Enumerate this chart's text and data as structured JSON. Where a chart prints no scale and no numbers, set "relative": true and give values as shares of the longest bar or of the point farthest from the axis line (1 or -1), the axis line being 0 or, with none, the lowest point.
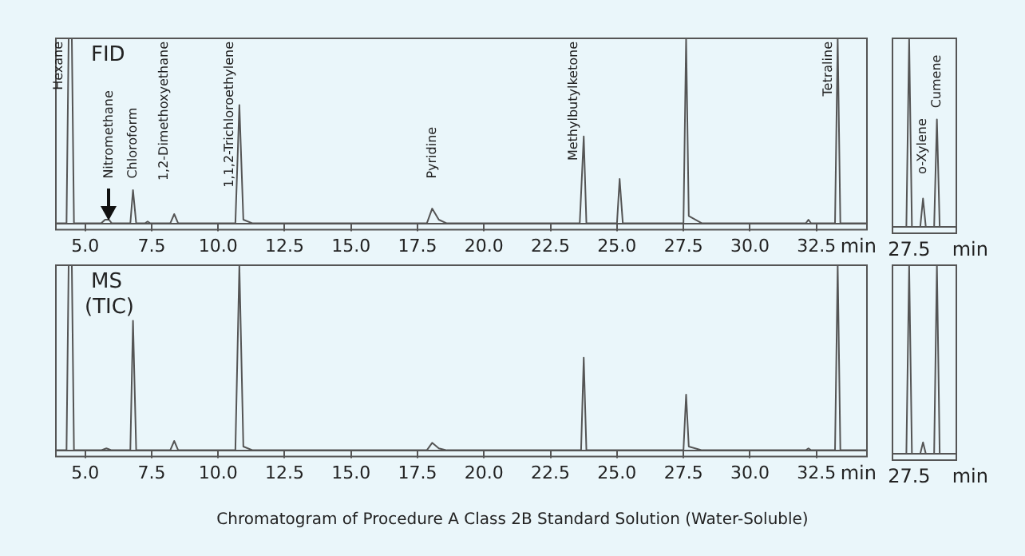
{
  "chart_data": [
    {
      "type": "line",
      "title": "FID",
      "xlabel": "min",
      "relative": true,
      "grid": false,
      "legend": false,
      "marker": "none",
      "line_style": "solid",
      "xlim": [
        3.9,
        34.4
      ],
      "xticks": [
        {
          "value": 5,
          "label": "5.0"
        },
        7.5,
        {
          "value": 10,
          "label": "10.0"
        },
        12.5,
        {
          "value": 15,
          "label": "15.0"
        },
        17.5,
        {
          "value": 20,
          "label": "20.0"
        },
        22.5,
        {
          "value": 25,
          "label": "25.0"
        },
        27.5,
        {
          "value": 30,
          "label": "30.0"
        },
        32.5
      ],
      "series": [
        {
          "color": "#555555",
          "x": [
            3.9,
            4.3,
            4.38,
            4.5,
            4.58,
            5.6,
            5.75,
            5.9,
            6.0,
            6.7,
            6.8,
            6.92,
            7.25,
            7.35,
            7.45,
            8.2,
            8.35,
            8.5,
            10.65,
            10.8,
            10.95,
            11.3,
            17.85,
            18.05,
            18.3,
            18.6,
            23.6,
            23.75,
            23.85,
            25.0,
            25.1,
            25.22,
            27.5,
            27.6,
            27.7,
            28.2,
            32.1,
            32.2,
            32.3,
            33.2,
            33.3,
            33.4,
            34.4
          ],
          "values": [
            0,
            0,
            1,
            1,
            0,
            0,
            0.02,
            0.02,
            0,
            0,
            0.18,
            0,
            0,
            0.01,
            0,
            0,
            0.05,
            0,
            0,
            0.64,
            0.02,
            0,
            0,
            0.08,
            0.02,
            0,
            0,
            0.47,
            0,
            0,
            0.24,
            0,
            0,
            1,
            0.04,
            0,
            0,
            0.02,
            0,
            0,
            1,
            0,
            0
          ]
        }
      ],
      "annotations": [
        {
          "text": "Hexane",
          "x": 4.38,
          "y": 1
        },
        {
          "text": "Nitromethane",
          "x": 5.9,
          "y": 0.02
        },
        {
          "text": "Chloroform",
          "x": 6.8,
          "y": 0.18
        },
        {
          "text": "1,2-Dimethoxyethane",
          "x": 8.35,
          "y": 0.05
        },
        {
          "text": "1,1,2-Trichloroethylene",
          "x": 10.8,
          "y": 0.64
        },
        {
          "text": "Pyridine",
          "x": 18.05,
          "y": 0.08
        },
        {
          "text": "Methylbutylketone",
          "x": 23.75,
          "y": 0.47
        },
        {
          "text": "Tetraline",
          "x": 33.3,
          "y": 1
        }
      ]
    },
    {
      "type": "line",
      "xlabel": "min",
      "relative": true,
      "grid": false,
      "legend": false,
      "marker": "none",
      "line_style": "solid",
      "categories": [
        null,
        null,
        null,
        null,
        null,
        null,
        null,
        null,
        null,
        null,
        null,
        null,
        null,
        null,
        null,
        null,
        null,
        null,
        null,
        null,
        null,
        null,
        null,
        null
      ],
      "series": [
        {
          "color": "#555555",
          "values": [
            0,
            0,
            0,
            0,
            0,
            0,
            1,
            0,
            0,
            0,
            0,
            0.15,
            0,
            0,
            0,
            0,
            0.57,
            0,
            0,
            0,
            0,
            0,
            0,
            0
          ]
        }
      ],
      "annotations": [
        "o-Xylene",
        "Cumene",
        "27.5"
      ]
    },
    {
      "type": "line",
      "title": "MS (TIC)",
      "xlabel": "min",
      "relative": true,
      "grid": false,
      "legend": false,
      "marker": "none",
      "line_style": "solid",
      "xlim": [
        3.9,
        34.4
      ],
      "xticks": [
        {
          "value": 5,
          "label": "5.0"
        },
        7.5,
        {
          "value": 10,
          "label": "10.0"
        },
        12.5,
        {
          "value": 15,
          "label": "15.0"
        },
        17.5,
        {
          "value": 20,
          "label": "20.0"
        },
        22.5,
        {
          "value": 25,
          "label": "25.0"
        },
        27.5,
        {
          "value": 30,
          "label": "30.0"
        },
        32.5
      ],
      "series": [
        {
          "color": "#555555",
          "x": [
            3.9,
            4.3,
            4.38,
            4.5,
            4.58,
            5.6,
            5.8,
            6.0,
            6.7,
            6.8,
            6.92,
            8.2,
            8.35,
            8.5,
            10.65,
            10.8,
            10.95,
            11.3,
            17.85,
            18.05,
            18.3,
            18.6,
            23.65,
            23.75,
            23.85,
            27.5,
            27.6,
            27.7,
            28.2,
            32.1,
            32.2,
            32.3,
            33.2,
            33.3,
            33.4,
            34.4
          ],
          "values": [
            0,
            0,
            1,
            1,
            0,
            0,
            0.01,
            0,
            0,
            0.7,
            0,
            0,
            0.05,
            0,
            0,
            1,
            0.02,
            0,
            0,
            0.04,
            0.01,
            0,
            0,
            0.5,
            0,
            0,
            0.3,
            0.02,
            0,
            0,
            0.01,
            0,
            0,
            1,
            0,
            0
          ]
        }
      ],
      "annotations": [
        "Chromatogram of Procedure A Class 2B Standard Solution (Water-Soluble)"
      ]
    },
    {
      "type": "line",
      "xlabel": "min",
      "relative": true,
      "grid": false,
      "legend": false,
      "marker": "none",
      "line_style": "solid",
      "categories": [
        null,
        null,
        null,
        null,
        null,
        null,
        null,
        null,
        null,
        null,
        null,
        null,
        null,
        null,
        null,
        null,
        null,
        null,
        null,
        null,
        null,
        null,
        null,
        null
      ],
      "series": [
        {
          "color": "#555555",
          "values": [
            0,
            0,
            0,
            0,
            0,
            0,
            1,
            0,
            0,
            0,
            0,
            0.06,
            0,
            0,
            0,
            0,
            1,
            0,
            0,
            0,
            0,
            0,
            0,
            0
          ]
        }
      ],
      "annotations": [
        "27.5"
      ]
    }
  ]
}
